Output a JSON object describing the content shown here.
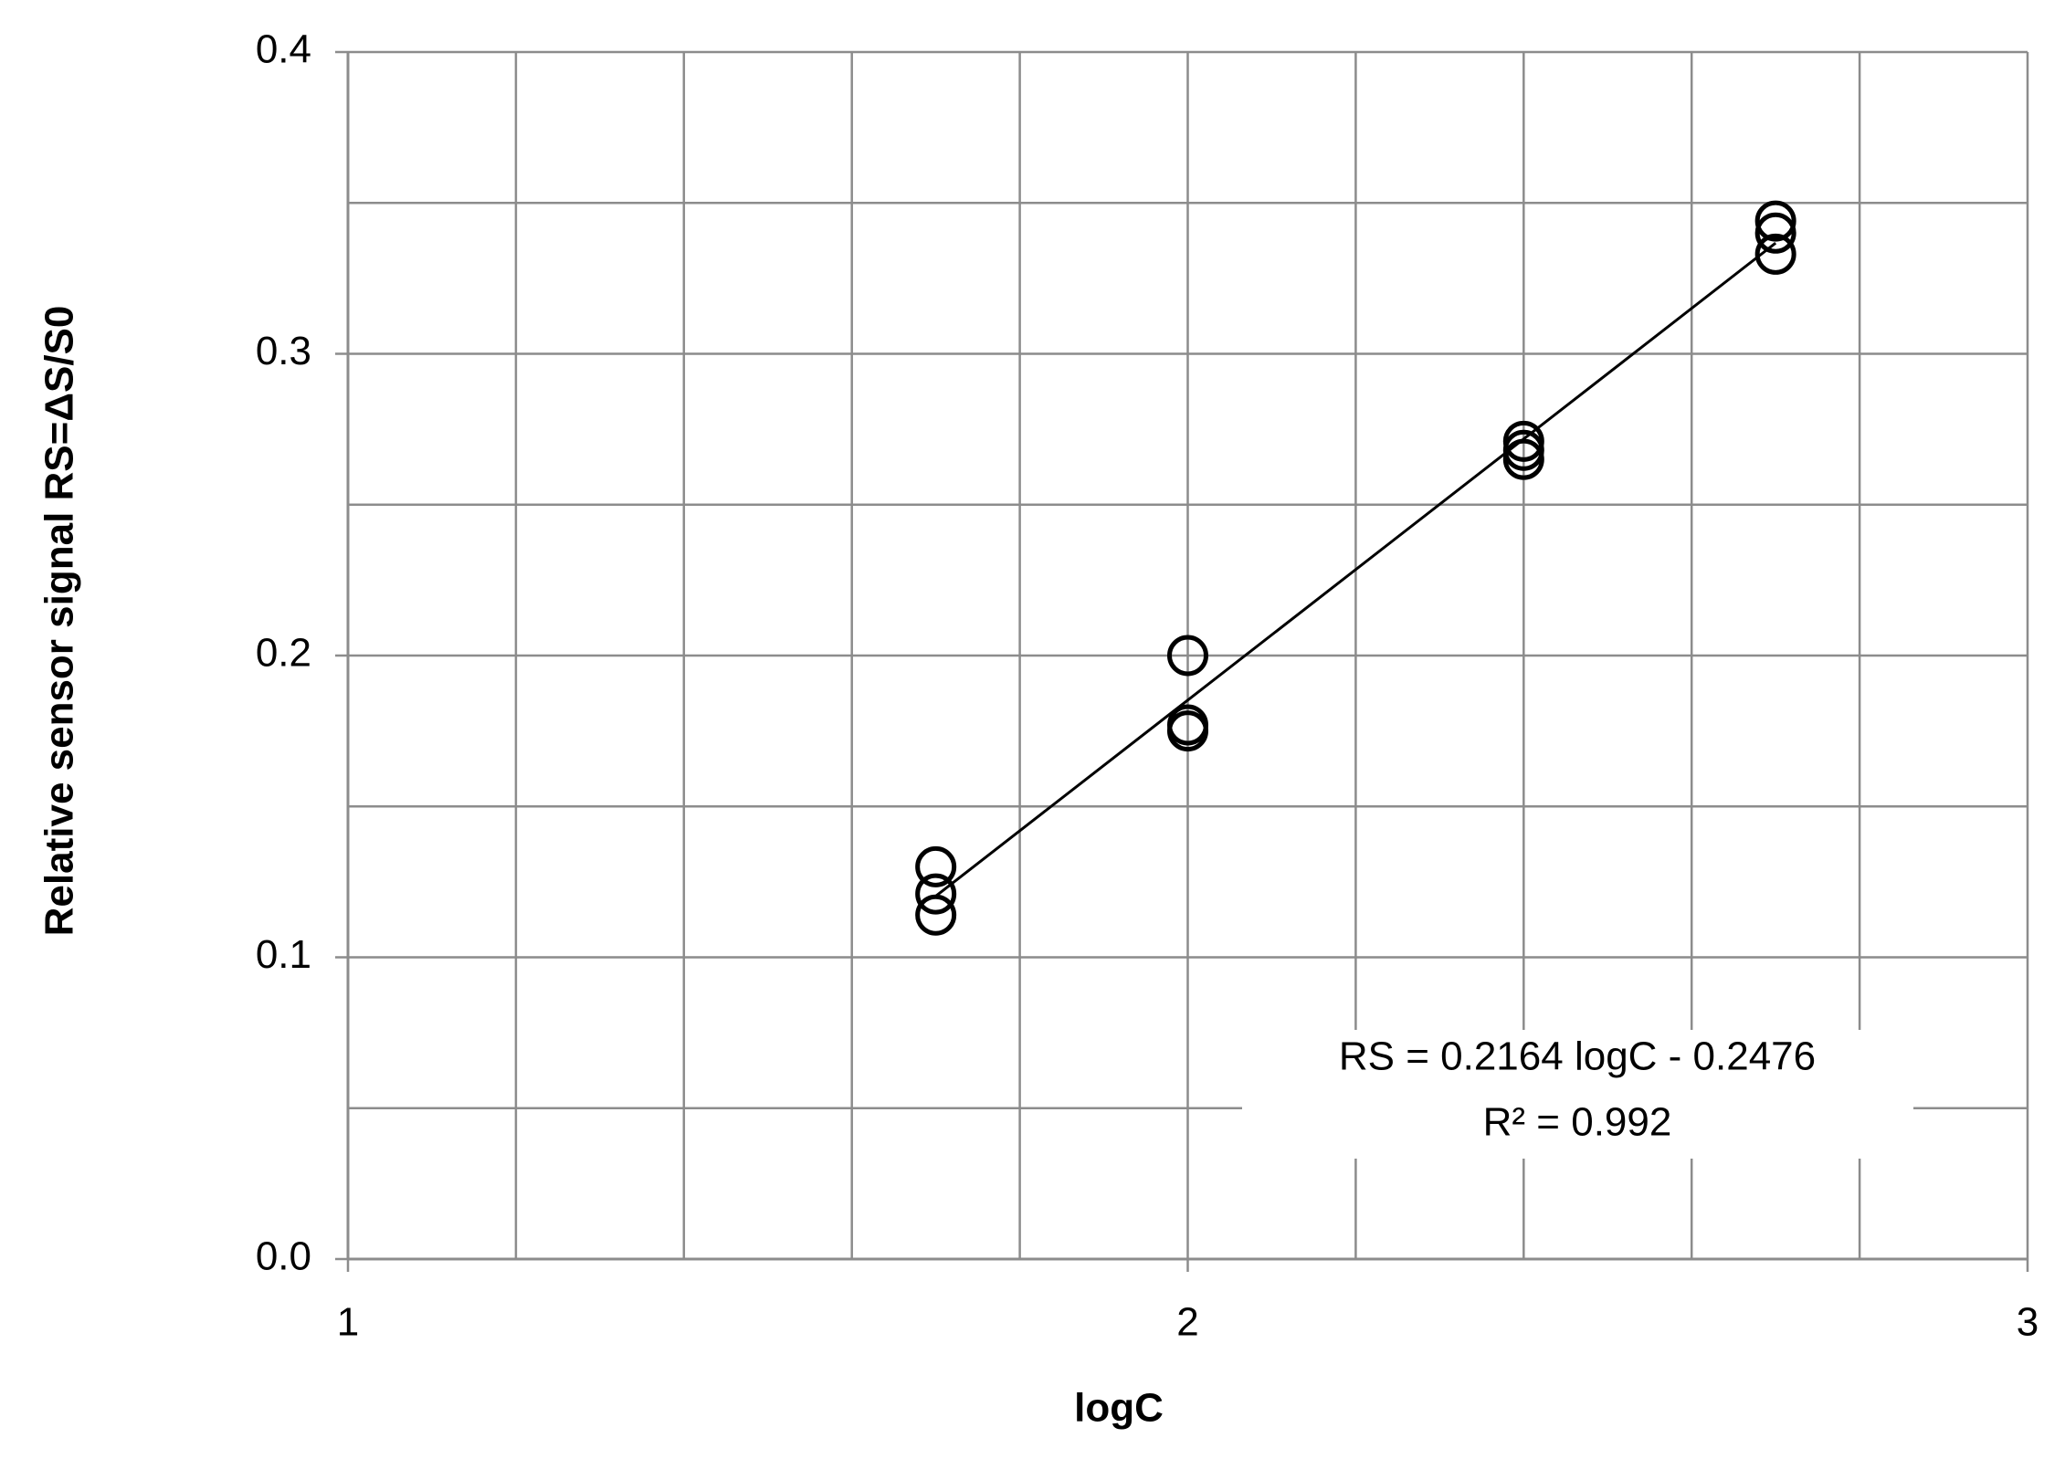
{
  "chart_data": {
    "type": "scatter",
    "x_label": "logC",
    "y_label": "Relative sensor signal RS=ΔS/S0",
    "xlim": [
      1,
      3
    ],
    "xticks": [
      1,
      2,
      3
    ],
    "xminor_ticks": [
      1.2,
      1.4,
      1.6,
      1.8,
      2.2,
      2.4,
      2.6,
      2.8
    ],
    "ylim": [
      0,
      0.4
    ],
    "yticks": [
      {
        "value": 0,
        "label": "0.0"
      },
      {
        "value": 0.1,
        "label": "0.1"
      },
      {
        "value": 0.2,
        "label": "0.2"
      },
      {
        "value": 0.3,
        "label": "0.3"
      },
      {
        "value": 0.4,
        "label": "0.4"
      }
    ],
    "yminor_ticks": [
      0.05,
      0.15,
      0.25,
      0.35
    ],
    "grid": true,
    "series": [
      {
        "color": "#000000",
        "x": [
          1.7,
          1.7,
          1.7,
          2.0,
          2.0,
          2.0,
          2.4,
          2.4,
          2.4,
          2.7,
          2.7,
          2.7
        ],
        "values": [
          0.13,
          0.121,
          0.114,
          0.2,
          0.177,
          0.175,
          0.271,
          0.268,
          0.265,
          0.344,
          0.34,
          0.333
        ]
      }
    ],
    "trendline": {
      "color": "#000000",
      "x": [
        1.7,
        2.7
      ],
      "values": [
        0.1203,
        0.3367
      ]
    },
    "annotations": [
      "RS = 0.2164 logC - 0.2476",
      "R² = 0.992"
    ]
  }
}
